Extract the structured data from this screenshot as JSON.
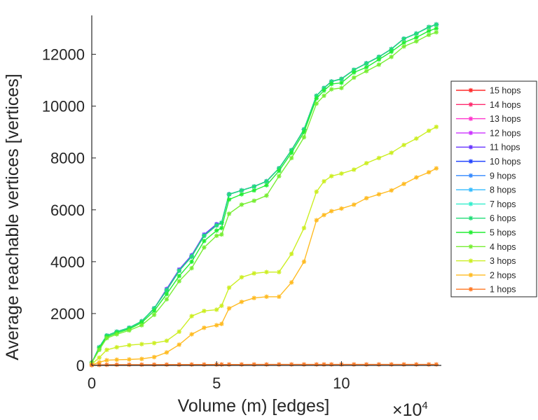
{
  "chart_data": {
    "type": "line",
    "title": "",
    "xlabel": "Volume (m) [edges]",
    "ylabel": "Average reachable vertices [vertices]",
    "x_exponent_label": "×10",
    "x_exponent": "4",
    "xlim": [
      0,
      14
    ],
    "ylim": [
      0,
      13500
    ],
    "xticks": [
      0,
      5,
      10
    ],
    "yticks": [
      0,
      2000,
      4000,
      6000,
      8000,
      10000,
      12000
    ],
    "grid": false,
    "legend_position": "right",
    "marker": "star",
    "x": [
      0,
      0.3,
      0.6,
      1.0,
      1.5,
      2.0,
      2.5,
      3.0,
      3.5,
      4.0,
      4.5,
      5.0,
      5.2,
      5.5,
      6.0,
      6.5,
      7.0,
      7.5,
      8.0,
      8.5,
      9.0,
      9.3,
      9.6,
      10.0,
      10.5,
      11.0,
      11.5,
      12.0,
      12.5,
      13.0,
      13.5,
      13.8
    ],
    "series": [
      {
        "name": "15 hops",
        "color": "#ff2a2a",
        "values": [
          100,
          700,
          1150,
          1300,
          1450,
          1700,
          2200,
          2900,
          3650,
          4200,
          5000,
          5400,
          5500,
          6600,
          6750,
          6900,
          7100,
          7600,
          8300,
          9100,
          10400,
          10700,
          10950,
          11050,
          11400,
          11650,
          11900,
          12200,
          12600,
          12800,
          13050,
          13150
        ]
      },
      {
        "name": "14 hops",
        "color": "#ff2a6e",
        "values": [
          100,
          700,
          1150,
          1300,
          1450,
          1700,
          2200,
          2900,
          3650,
          4200,
          5000,
          5400,
          5500,
          6600,
          6750,
          6900,
          7100,
          7600,
          8300,
          9100,
          10400,
          10700,
          10950,
          11050,
          11400,
          11650,
          11900,
          12200,
          12600,
          12800,
          13050,
          13150
        ]
      },
      {
        "name": "13 hops",
        "color": "#ff33cc",
        "values": [
          100,
          700,
          1150,
          1300,
          1450,
          1700,
          2200,
          2900,
          3650,
          4200,
          5000,
          5400,
          5500,
          6600,
          6750,
          6900,
          7100,
          7600,
          8300,
          9100,
          10400,
          10700,
          10950,
          11050,
          11400,
          11650,
          11900,
          12200,
          12600,
          12800,
          13050,
          13150
        ]
      },
      {
        "name": "12 hops",
        "color": "#cc33ff",
        "values": [
          100,
          700,
          1150,
          1300,
          1450,
          1700,
          2200,
          2900,
          3650,
          4200,
          5000,
          5400,
          5500,
          6600,
          6750,
          6900,
          7100,
          7600,
          8300,
          9100,
          10400,
          10700,
          10950,
          11050,
          11400,
          11650,
          11900,
          12200,
          12600,
          12800,
          13050,
          13150
        ]
      },
      {
        "name": "11 hops",
        "color": "#6633ff",
        "values": [
          100,
          700,
          1150,
          1300,
          1450,
          1700,
          2200,
          2950,
          3700,
          4250,
          5050,
          5450,
          5500,
          6600,
          6750,
          6900,
          7100,
          7600,
          8300,
          9100,
          10400,
          10700,
          10950,
          11050,
          11400,
          11650,
          11900,
          12200,
          12600,
          12800,
          13050,
          13150
        ]
      },
      {
        "name": "10 hops",
        "color": "#2244ff",
        "values": [
          100,
          700,
          1150,
          1300,
          1450,
          1700,
          2200,
          2900,
          3650,
          4200,
          5000,
          5400,
          5500,
          6600,
          6750,
          6900,
          7100,
          7600,
          8300,
          9100,
          10400,
          10700,
          10950,
          11050,
          11400,
          11650,
          11900,
          12200,
          12600,
          12800,
          13050,
          13150
        ]
      },
      {
        "name": "9 hops",
        "color": "#3388ff",
        "values": [
          100,
          700,
          1150,
          1300,
          1450,
          1700,
          2200,
          2900,
          3650,
          4200,
          5000,
          5400,
          5500,
          6600,
          6750,
          6900,
          7100,
          7600,
          8300,
          9100,
          10400,
          10700,
          10950,
          11050,
          11400,
          11650,
          11900,
          12200,
          12600,
          12800,
          13050,
          13150
        ]
      },
      {
        "name": "8 hops",
        "color": "#33bbff",
        "values": [
          100,
          700,
          1150,
          1300,
          1450,
          1700,
          2200,
          2900,
          3650,
          4200,
          5000,
          5400,
          5500,
          6600,
          6750,
          6900,
          7100,
          7600,
          8300,
          9100,
          10400,
          10700,
          10950,
          11050,
          11400,
          11650,
          11900,
          12200,
          12600,
          12800,
          13050,
          13150
        ]
      },
      {
        "name": "7 hops",
        "color": "#33eecc",
        "values": [
          100,
          700,
          1150,
          1300,
          1450,
          1700,
          2200,
          2900,
          3650,
          4200,
          5000,
          5400,
          5500,
          6600,
          6750,
          6900,
          7100,
          7600,
          8300,
          9100,
          10400,
          10700,
          10950,
          11050,
          11400,
          11650,
          11900,
          12200,
          12600,
          12800,
          13050,
          13150
        ]
      },
      {
        "name": "6 hops",
        "color": "#22dd77",
        "values": [
          100,
          700,
          1150,
          1300,
          1450,
          1700,
          2200,
          2900,
          3650,
          4200,
          5000,
          5400,
          5500,
          6600,
          6750,
          6900,
          7100,
          7600,
          8300,
          9100,
          10400,
          10700,
          10950,
          11050,
          11400,
          11650,
          11900,
          12200,
          12600,
          12800,
          13050,
          13150
        ]
      },
      {
        "name": "5 hops",
        "color": "#22ee33",
        "values": [
          100,
          650,
          1100,
          1250,
          1400,
          1650,
          2100,
          2750,
          3450,
          4000,
          4800,
          5200,
          5300,
          6400,
          6600,
          6750,
          6950,
          7500,
          8200,
          9000,
          10300,
          10600,
          10850,
          10900,
          11300,
          11500,
          11800,
          12100,
          12450,
          12650,
          12900,
          13000
        ]
      },
      {
        "name": "4 hops",
        "color": "#77ee33",
        "values": [
          100,
          600,
          1050,
          1200,
          1350,
          1550,
          1950,
          2550,
          3250,
          3750,
          4550,
          5000,
          5050,
          5850,
          6200,
          6350,
          6550,
          7300,
          8000,
          8800,
          10100,
          10400,
          10650,
          10700,
          11100,
          11350,
          11600,
          11900,
          12300,
          12500,
          12750,
          12850
        ]
      },
      {
        "name": "3 hops",
        "color": "#ccee22",
        "values": [
          50,
          300,
          600,
          700,
          780,
          820,
          860,
          950,
          1300,
          1900,
          2100,
          2150,
          2300,
          3000,
          3400,
          3550,
          3600,
          3600,
          4300,
          5300,
          6700,
          7100,
          7300,
          7400,
          7550,
          7800,
          8000,
          8200,
          8500,
          8750,
          9050,
          9200
        ]
      },
      {
        "name": "2 hops",
        "color": "#ffbb22",
        "values": [
          20,
          120,
          200,
          220,
          230,
          250,
          320,
          500,
          800,
          1200,
          1450,
          1550,
          1600,
          2200,
          2450,
          2600,
          2650,
          2650,
          3200,
          4000,
          5600,
          5800,
          5950,
          6050,
          6200,
          6450,
          6600,
          6750,
          7000,
          7250,
          7450,
          7600
        ]
      },
      {
        "name": "1 hops",
        "color": "#ff7722",
        "values": [
          10,
          20,
          25,
          28,
          30,
          30,
          30,
          32,
          33,
          34,
          35,
          35,
          36,
          36,
          36,
          37,
          37,
          37,
          38,
          38,
          38,
          38,
          38,
          38,
          38,
          38,
          38,
          38,
          38,
          38,
          38,
          38
        ]
      }
    ]
  }
}
